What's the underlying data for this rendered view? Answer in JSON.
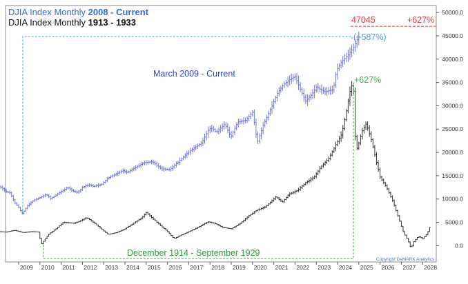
{
  "chart_data": {
    "type": "ohlc",
    "title_lines": [
      {
        "prefix": "DJIA Index Monthly ",
        "period": "2008 - Current",
        "color": "#2b6fd6"
      },
      {
        "prefix": "DJIA Index Monthly ",
        "period": "1913 - 1933",
        "color": "#111111"
      }
    ],
    "x_tick_labels": [
      "2009",
      "2010",
      "2011",
      "2012",
      "2013",
      "2014",
      "2015",
      "2016",
      "2017",
      "2018",
      "2019",
      "2020",
      "2021",
      "2022",
      "2023",
      "2024",
      "2025",
      "2026",
      "2027",
      "2028"
    ],
    "y_tick_labels": [
      "50000.0",
      "45000.0",
      "40000.0",
      "35000.0",
      "30000.0",
      "25000.0",
      "20000.0",
      "15000.0",
      "10000.0",
      "5000.0",
      "0.0"
    ],
    "ylim": [
      -3500,
      51500
    ],
    "grid": false,
    "series": [
      {
        "color": "#6f72e0",
        "points": [
          [
            2008.0,
            12800
          ],
          [
            2008.2,
            12400
          ],
          [
            2008.4,
            11600
          ],
          [
            2008.6,
            11300
          ],
          [
            2008.8,
            9300
          ],
          [
            2009.0,
            8200
          ],
          [
            2009.17,
            6800
          ],
          [
            2009.4,
            8500
          ],
          [
            2009.7,
            9700
          ],
          [
            2010.0,
            10300
          ],
          [
            2010.3,
            11000
          ],
          [
            2010.5,
            10100
          ],
          [
            2010.9,
            11300
          ],
          [
            2011.3,
            12500
          ],
          [
            2011.6,
            11600
          ],
          [
            2011.8,
            11400
          ],
          [
            2012.0,
            12500
          ],
          [
            2012.3,
            13100
          ],
          [
            2012.5,
            12700
          ],
          [
            2012.9,
            13100
          ],
          [
            2013.2,
            14500
          ],
          [
            2013.5,
            15200
          ],
          [
            2013.9,
            16100
          ],
          [
            2014.1,
            15700
          ],
          [
            2014.5,
            16800
          ],
          [
            2014.9,
            17800
          ],
          [
            2015.3,
            18000
          ],
          [
            2015.7,
            16500
          ],
          [
            2016.1,
            16300
          ],
          [
            2016.5,
            17900
          ],
          [
            2016.9,
            19700
          ],
          [
            2017.2,
            20800
          ],
          [
            2017.6,
            22000
          ],
          [
            2017.95,
            25000
          ],
          [
            2018.1,
            25200
          ],
          [
            2018.3,
            24300
          ],
          [
            2018.7,
            26100
          ],
          [
            2018.98,
            23300
          ],
          [
            2019.3,
            26500
          ],
          [
            2019.7,
            26900
          ],
          [
            2020.0,
            28600
          ],
          [
            2020.12,
            25500
          ],
          [
            2020.22,
            22000
          ],
          [
            2020.5,
            25800
          ],
          [
            2020.9,
            29800
          ],
          [
            2021.2,
            33000
          ],
          [
            2021.5,
            34700
          ],
          [
            2021.8,
            35800
          ],
          [
            2022.0,
            36300
          ],
          [
            2022.3,
            33000
          ],
          [
            2022.5,
            31000
          ],
          [
            2022.8,
            32500
          ],
          [
            2023.0,
            34000
          ],
          [
            2023.4,
            33000
          ],
          [
            2023.8,
            33500
          ],
          [
            2023.95,
            37600
          ],
          [
            2024.2,
            39500
          ],
          [
            2024.5,
            40900
          ],
          [
            2024.75,
            42500
          ],
          [
            2024.95,
            44500
          ],
          [
            2025.0,
            44800
          ]
        ],
        "end_label": "(+587%)"
      },
      {
        "color": "#333333",
        "points": [
          [
            2008.0,
            3000
          ],
          [
            2008.4,
            2900
          ],
          [
            2008.8,
            3300
          ],
          [
            2009.2,
            2800
          ],
          [
            2009.6,
            3000
          ],
          [
            2009.95,
            2900
          ],
          [
            2010.05,
            200
          ],
          [
            2010.4,
            2400
          ],
          [
            2010.8,
            3800
          ],
          [
            2011.1,
            5000
          ],
          [
            2011.6,
            4800
          ],
          [
            2011.9,
            5300
          ],
          [
            2012.2,
            6000
          ],
          [
            2012.6,
            4700
          ],
          [
            2012.9,
            3500
          ],
          [
            2013.2,
            2400
          ],
          [
            2013.6,
            2800
          ],
          [
            2014.0,
            3600
          ],
          [
            2014.4,
            4800
          ],
          [
            2014.8,
            6000
          ],
          [
            2015.0,
            7100
          ],
          [
            2015.4,
            5400
          ],
          [
            2015.7,
            4200
          ],
          [
            2016.0,
            3000
          ],
          [
            2016.3,
            1500
          ],
          [
            2016.7,
            2400
          ],
          [
            2017.1,
            3200
          ],
          [
            2017.5,
            4100
          ],
          [
            2017.9,
            5100
          ],
          [
            2018.2,
            4800
          ],
          [
            2018.6,
            3900
          ],
          [
            2019.0,
            3600
          ],
          [
            2019.4,
            4700
          ],
          [
            2019.8,
            6300
          ],
          [
            2020.2,
            7600
          ],
          [
            2020.6,
            8300
          ],
          [
            2020.9,
            9600
          ],
          [
            2021.1,
            10500
          ],
          [
            2021.4,
            9300
          ],
          [
            2021.7,
            11000
          ],
          [
            2022.1,
            11800
          ],
          [
            2022.5,
            13500
          ],
          [
            2022.9,
            14700
          ],
          [
            2023.2,
            16800
          ],
          [
            2023.6,
            18800
          ],
          [
            2023.9,
            21500
          ],
          [
            2024.2,
            24000
          ],
          [
            2024.4,
            28500
          ],
          [
            2024.6,
            33500
          ],
          [
            2024.72,
            35000
          ],
          [
            2024.8,
            30000
          ],
          [
            2024.85,
            20000
          ],
          [
            2025.0,
            22000
          ],
          [
            2025.15,
            24500
          ],
          [
            2025.35,
            26200
          ],
          [
            2025.6,
            22500
          ],
          [
            2025.8,
            18500
          ],
          [
            2026.0,
            14700
          ],
          [
            2026.3,
            12500
          ],
          [
            2026.6,
            9500
          ],
          [
            2026.9,
            5500
          ],
          [
            2027.1,
            2800
          ],
          [
            2027.3,
            1200
          ],
          [
            2027.45,
            -600
          ],
          [
            2027.6,
            1000
          ],
          [
            2027.8,
            2000
          ],
          [
            2028.0,
            1500
          ],
          [
            2028.2,
            2500
          ],
          [
            2028.35,
            4100
          ]
        ],
        "end_label": "+627%"
      }
    ],
    "annotations": {
      "target_value": "47045",
      "target_pct": "+627%",
      "range_label_recent": "March 2009 - Current",
      "range_label_historic": "December 1914 - September 1929",
      "credit": "Copyright DeMARK Analytics"
    },
    "colors": {
      "recent": "#6f72e0",
      "historic": "#333333",
      "blue_box": "#3ea0e8",
      "green_box": "#3cb043",
      "target": "#e23b3b",
      "axis": "#555555"
    }
  }
}
